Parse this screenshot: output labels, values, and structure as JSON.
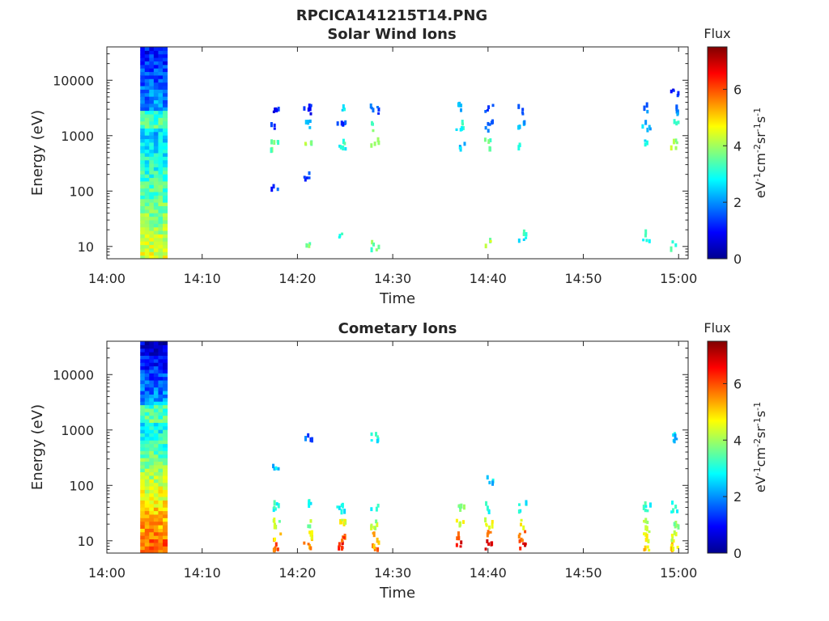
{
  "figure_title": "RPCICA141215T14.PNG",
  "chart_data": [
    {
      "type": "heatmap",
      "title": "Solar Wind Ions",
      "xlabel": "Time",
      "ylabel": "Energy (eV)",
      "y_scale": "log",
      "ylim": [
        6,
        40000
      ],
      "xlim": [
        "14:00",
        "15:01"
      ],
      "x_ticks": [
        "14:00",
        "14:10",
        "14:20",
        "14:30",
        "14:40",
        "14:50",
        "15:00"
      ],
      "y_ticks": [
        "10",
        "100",
        "1000",
        "10000"
      ],
      "colorbar": {
        "label": "Flux",
        "unit": "eV-1cm-2sr-1s-1",
        "ticks": [
          "0",
          "2",
          "4",
          "6"
        ],
        "range": [
          0,
          7.5
        ],
        "colormap": "jet"
      },
      "bursts": [
        {
          "t": "14:03:30-14:06:20",
          "energy_range": [
            6,
            40000
          ],
          "flux_range": [
            1,
            4.5
          ],
          "note": "full energy sweep"
        },
        {
          "t": "14:17:30",
          "energy": [
            650,
            1500,
            2700,
            130
          ],
          "flux": [
            3.5,
            1.5,
            1.0,
            1.5
          ]
        },
        {
          "t": "14:21",
          "energy": [
            650,
            1500,
            3000,
            10,
            180
          ],
          "flux": [
            4.0,
            2.0,
            1.0,
            3.5,
            1.5
          ]
        },
        {
          "t": "14:24:30",
          "energy": [
            700,
            1500,
            2800,
            15
          ],
          "flux": [
            3.0,
            1.5,
            2.5,
            3.0
          ]
        },
        {
          "t": "14:28",
          "energy": [
            700,
            1500,
            3000,
            10
          ],
          "flux": [
            4.0,
            3.5,
            1.5,
            3.5
          ]
        },
        {
          "t": "14:37",
          "energy": [
            700,
            1500,
            3000
          ],
          "flux": [
            2.5,
            3.0,
            2.0
          ]
        },
        {
          "t": "14:40",
          "energy": [
            700,
            1500,
            3000,
            12
          ],
          "flux": [
            3.5,
            2.0,
            1.5,
            4.0
          ]
        },
        {
          "t": "14:43:30",
          "energy": [
            700,
            1500,
            3000,
            15
          ],
          "flux": [
            3.0,
            2.0,
            1.5,
            3.0
          ]
        },
        {
          "t": "14:56:30",
          "energy": [
            700,
            1500,
            3000,
            15
          ],
          "flux": [
            3.0,
            2.5,
            2.0,
            3.0
          ]
        },
        {
          "t": "14:59:30",
          "energy": [
            700,
            1500,
            3000,
            10,
            5500
          ],
          "flux": [
            4.0,
            3.0,
            2.0,
            3.5,
            1.0
          ]
        }
      ]
    },
    {
      "type": "heatmap",
      "title": "Cometary Ions",
      "xlabel": "Time",
      "ylabel": "Energy (eV)",
      "y_scale": "log",
      "ylim": [
        6,
        40000
      ],
      "xlim": [
        "14:00",
        "15:01"
      ],
      "x_ticks": [
        "14:00",
        "14:10",
        "14:20",
        "14:30",
        "14:40",
        "14:50",
        "15:00"
      ],
      "y_ticks": [
        "10",
        "100",
        "1000",
        "10000"
      ],
      "colorbar": {
        "label": "Flux",
        "unit": "eV-1cm-2sr-1s-1",
        "ticks": [
          "0",
          "2",
          "4",
          "6"
        ],
        "range": [
          0,
          7.5
        ],
        "colormap": "jet"
      },
      "bursts": [
        {
          "t": "14:03:30-14:06:20",
          "energy_range": [
            6,
            40000
          ],
          "flux_range": [
            0.5,
            6
          ],
          "note": "full energy sweep"
        },
        {
          "t": "14:17:45",
          "energy": [
            8,
            12,
            20,
            40,
            200
          ],
          "flux": [
            6.0,
            5.0,
            4.0,
            3.0,
            2.5
          ]
        },
        {
          "t": "14:21",
          "energy": [
            8,
            12,
            20,
            50,
            700
          ],
          "flux": [
            5.5,
            5.0,
            4.0,
            3.0,
            1.5
          ]
        },
        {
          "t": "14:24:30",
          "energy": [
            8,
            12,
            20,
            40
          ],
          "flux": [
            6.5,
            6.0,
            4.5,
            3.0
          ]
        },
        {
          "t": "14:28",
          "energy": [
            8,
            12,
            20,
            40,
            700
          ],
          "flux": [
            5.5,
            5.0,
            4.0,
            3.0,
            3.0
          ]
        },
        {
          "t": "14:37",
          "energy": [
            8,
            12,
            20,
            40
          ],
          "flux": [
            6.5,
            6.0,
            4.5,
            3.5
          ]
        },
        {
          "t": "14:40",
          "energy": [
            8,
            12,
            20,
            40,
            120
          ],
          "flux": [
            6.5,
            6.0,
            4.5,
            3.0,
            2.5
          ]
        },
        {
          "t": "14:43:30",
          "energy": [
            8,
            12,
            20,
            40
          ],
          "flux": [
            6.5,
            6.0,
            4.5,
            3.0
          ]
        },
        {
          "t": "14:56:30",
          "energy": [
            8,
            12,
            20,
            40
          ],
          "flux": [
            5.0,
            4.5,
            4.0,
            3.0
          ]
        },
        {
          "t": "14:59:30",
          "energy": [
            8,
            12,
            20,
            40,
            700
          ],
          "flux": [
            5.0,
            4.5,
            4.0,
            3.0,
            2.5
          ]
        }
      ]
    }
  ]
}
